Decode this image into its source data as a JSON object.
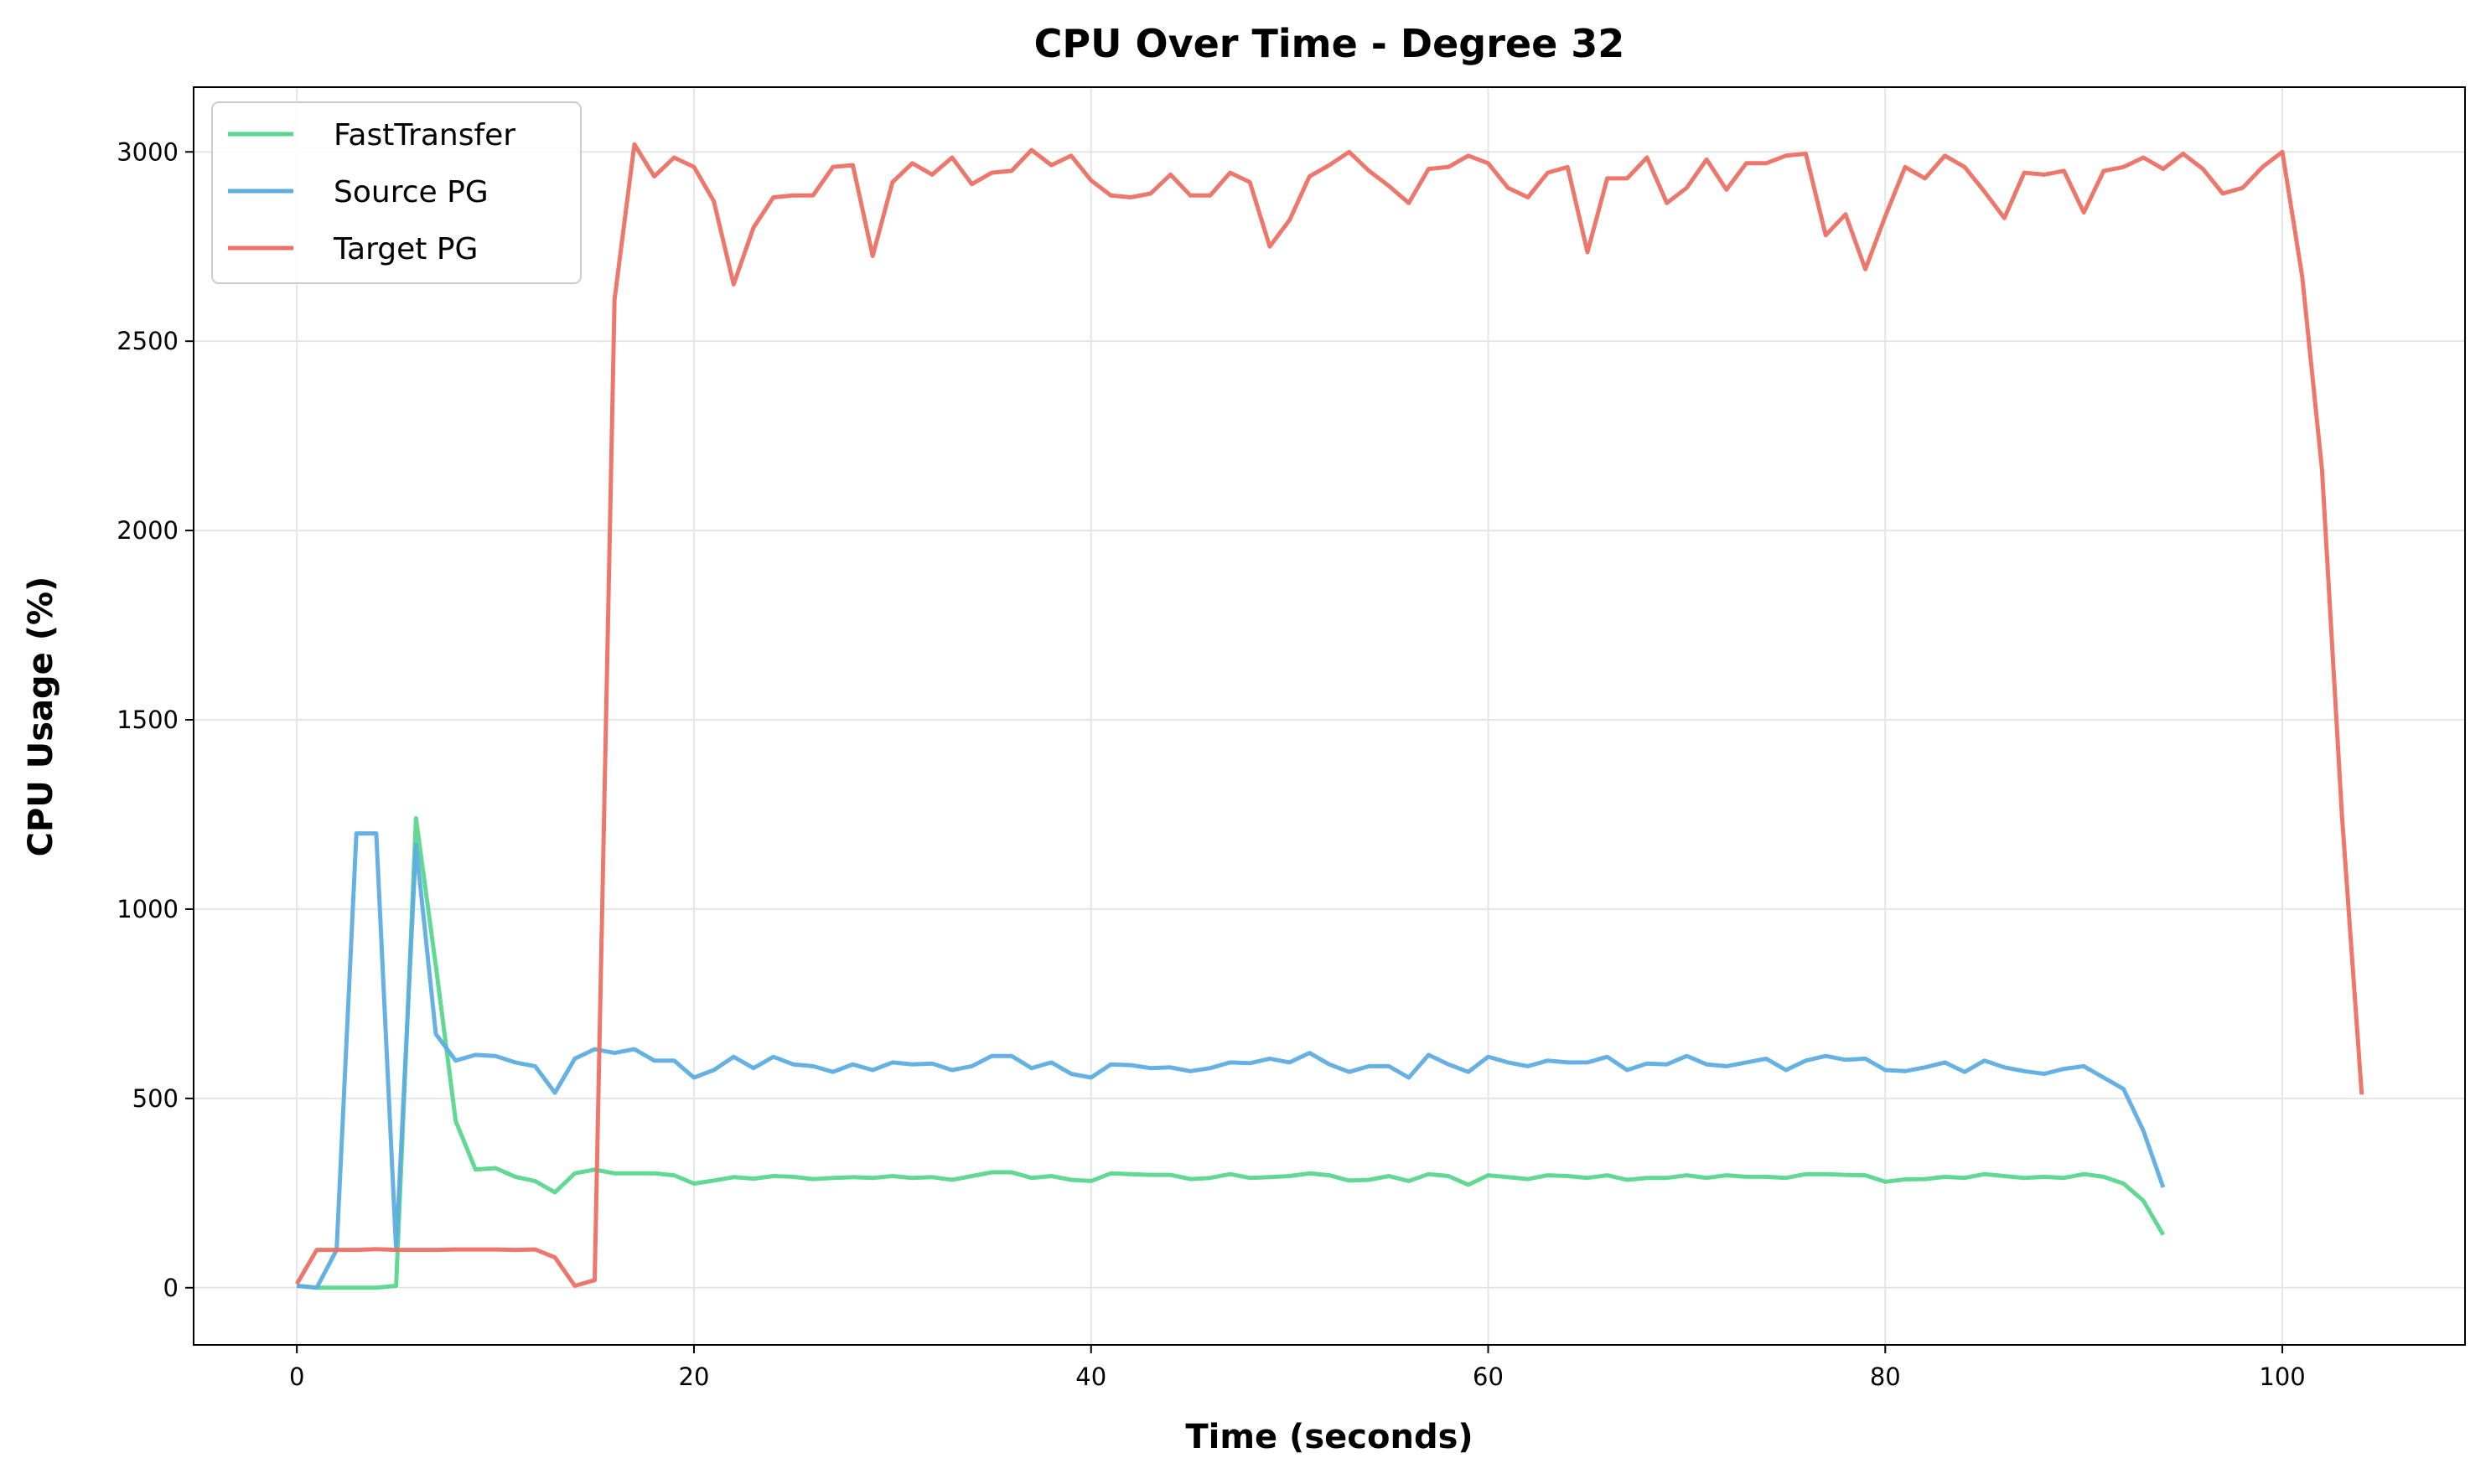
{
  "chart_data": {
    "type": "line",
    "title": "CPU Over Time - Degree 32",
    "xlabel": "Time (seconds)",
    "ylabel": "CPU Usage (%)",
    "xlim": [
      -5.2,
      109.2
    ],
    "ylim": [
      -151,
      3171
    ],
    "xticks": [
      0,
      20,
      40,
      60,
      80,
      100
    ],
    "yticks": [
      0,
      500,
      1000,
      1500,
      2000,
      2500,
      3000
    ],
    "grid": true,
    "legend_position": "top-left",
    "series": [
      {
        "name": "FastTransfer",
        "color": "#58d68d",
        "values": [
          5,
          0,
          0,
          0,
          0,
          5,
          1240,
          850,
          440,
          312,
          316,
          293,
          282,
          252,
          302,
          312,
          302,
          302,
          302,
          297,
          275,
          283,
          292,
          288,
          295,
          293,
          287,
          290,
          292,
          290,
          295,
          290,
          292,
          285,
          295,
          305,
          305,
          290,
          295,
          285,
          282,
          302,
          300,
          298,
          298,
          287,
          290,
          300,
          290,
          292,
          295,
          302,
          297,
          283,
          285,
          295,
          282,
          300,
          295,
          272,
          297,
          292,
          287,
          297,
          295,
          290,
          297,
          285,
          290,
          290,
          297,
          290,
          297,
          293,
          293,
          290,
          300,
          300,
          298,
          297,
          280,
          286,
          287,
          293,
          290,
          300,
          295,
          290,
          293,
          290,
          300,
          293,
          275,
          230,
          140
        ]
      },
      {
        "name": "Source PG",
        "color": "#5dade2",
        "values": [
          5,
          0,
          100,
          1200,
          1200,
          100,
          1170,
          670,
          600,
          615,
          612,
          595,
          585,
          515,
          605,
          630,
          620,
          630,
          600,
          600,
          555,
          575,
          610,
          580,
          610,
          590,
          585,
          570,
          590,
          575,
          595,
          590,
          592,
          575,
          585,
          612,
          612,
          580,
          595,
          565,
          555,
          590,
          588,
          580,
          582,
          572,
          580,
          595,
          593,
          605,
          595,
          620,
          590,
          570,
          585,
          585,
          555,
          615,
          590,
          570,
          610,
          595,
          585,
          600,
          595,
          595,
          610,
          575,
          592,
          590,
          612,
          590,
          585,
          595,
          605,
          575,
          600,
          612,
          602,
          605,
          575,
          572,
          582,
          595,
          570,
          600,
          582,
          572,
          565,
          578,
          585,
          555,
          525,
          415,
          265
        ]
      },
      {
        "name": "Target PG",
        "color": "#ec7063",
        "values": [
          10,
          100,
          100,
          100,
          102,
          100,
          100,
          100,
          101,
          101,
          101,
          100,
          101,
          80,
          5,
          20,
          2610,
          3020,
          2935,
          2985,
          2960,
          2870,
          2650,
          2800,
          2880,
          2885,
          2885,
          2960,
          2965,
          2725,
          2920,
          2970,
          2940,
          2985,
          2915,
          2945,
          2950,
          3005,
          2965,
          2990,
          2925,
          2885,
          2880,
          2890,
          2940,
          2885,
          2885,
          2945,
          2920,
          2750,
          2820,
          2935,
          2965,
          3000,
          2950,
          2910,
          2865,
          2955,
          2960,
          2990,
          2970,
          2905,
          2880,
          2945,
          2960,
          2735,
          2930,
          2930,
          2985,
          2865,
          2905,
          2980,
          2900,
          2970,
          2970,
          2990,
          2995,
          2780,
          2835,
          2690,
          2830,
          2960,
          2930,
          2990,
          2960,
          2895,
          2825,
          2945,
          2940,
          2950,
          2840,
          2950,
          2960,
          2985,
          2955,
          2995,
          2955,
          2890,
          2905,
          2960,
          3000,
          2670,
          2160,
          1250,
          510
        ]
      }
    ]
  }
}
